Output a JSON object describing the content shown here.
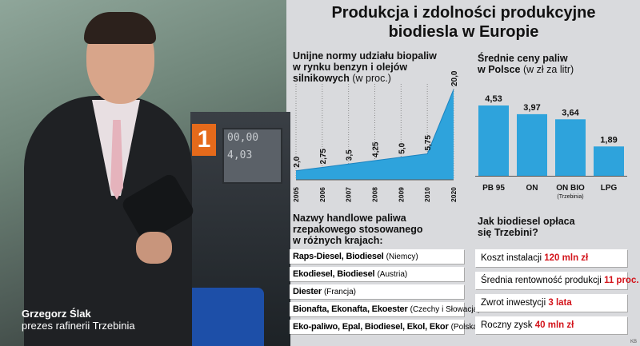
{
  "title": {
    "line1": "Produkcja i zdolności produkcyjne",
    "line2": "biodiesla w Europie"
  },
  "caption": {
    "name": "Grzegorz Ślak",
    "role": "prezes rafinerii Trzebinia"
  },
  "photo": {
    "pump_number": "1",
    "pump_display_1": "00,00",
    "pump_display_2": "4,03"
  },
  "chart_data": [
    {
      "type": "area",
      "title_line1": "Unijne normy udziału biopaliw",
      "title_line2": "w rynku benzyn i olejów",
      "title_line3": "silnikowych",
      "unit": "(w proc.)",
      "categories": [
        "2005",
        "2006",
        "2007",
        "2008",
        "2009",
        "2010",
        "2020"
      ],
      "values": [
        2.0,
        2.75,
        3.5,
        4.25,
        5.0,
        5.75,
        20.0
      ],
      "labels": [
        "2,0",
        "2,75",
        "3,5",
        "4,25",
        "5,0",
        "5,75",
        "20,0"
      ],
      "ylim": [
        0,
        20
      ],
      "color": "#2ea3dc"
    },
    {
      "type": "bar",
      "title_line1": "Średnie ceny paliw",
      "title_line2": "w Polsce",
      "unit": "(w zł za litr)",
      "categories": [
        "PB 95",
        "ON",
        "ON BIO",
        "LPG"
      ],
      "category_notes": [
        "",
        "",
        "(Trzebinia)",
        ""
      ],
      "values": [
        4.53,
        3.97,
        3.64,
        1.89
      ],
      "labels": [
        "4,53",
        "3,97",
        "3,64",
        "1,89"
      ],
      "ylim": [
        0,
        4.53
      ],
      "color": "#2ea3dc"
    }
  ],
  "names": {
    "title_line1": "Nazwy handlowe paliwa",
    "title_line2": "rzepakowego stosowanego",
    "title_line3": "w różnych krajach:",
    "rows": [
      {
        "names": "Raps-Diesel, Biodiesel",
        "country": "(Niemcy)"
      },
      {
        "names": "Ekodiesel, Biodiesel",
        "country": "(Austria)"
      },
      {
        "names": "Diester",
        "country": "(Francja)"
      },
      {
        "names": "Bionafta, Ekonafta, Ekoester",
        "country": "(Czechy i Słowacja)"
      },
      {
        "names": "Eko-paliwo, Epal, Biodiesel, Ekol, Ekor",
        "country": "(Polska)"
      }
    ]
  },
  "economics": {
    "title_line1": "Jak biodiesel opłaca",
    "title_line2": "się Trzebini?",
    "rows": [
      {
        "label": "Koszt instalacji",
        "value": "120 mln zł"
      },
      {
        "label": "Średnia rentowność produkcji",
        "value": "11 proc."
      },
      {
        "label": "Zwrot inwestycji",
        "value": "3 lata"
      },
      {
        "label": "Roczny zysk",
        "value": "40 mln zł"
      }
    ]
  },
  "credit": "KB"
}
